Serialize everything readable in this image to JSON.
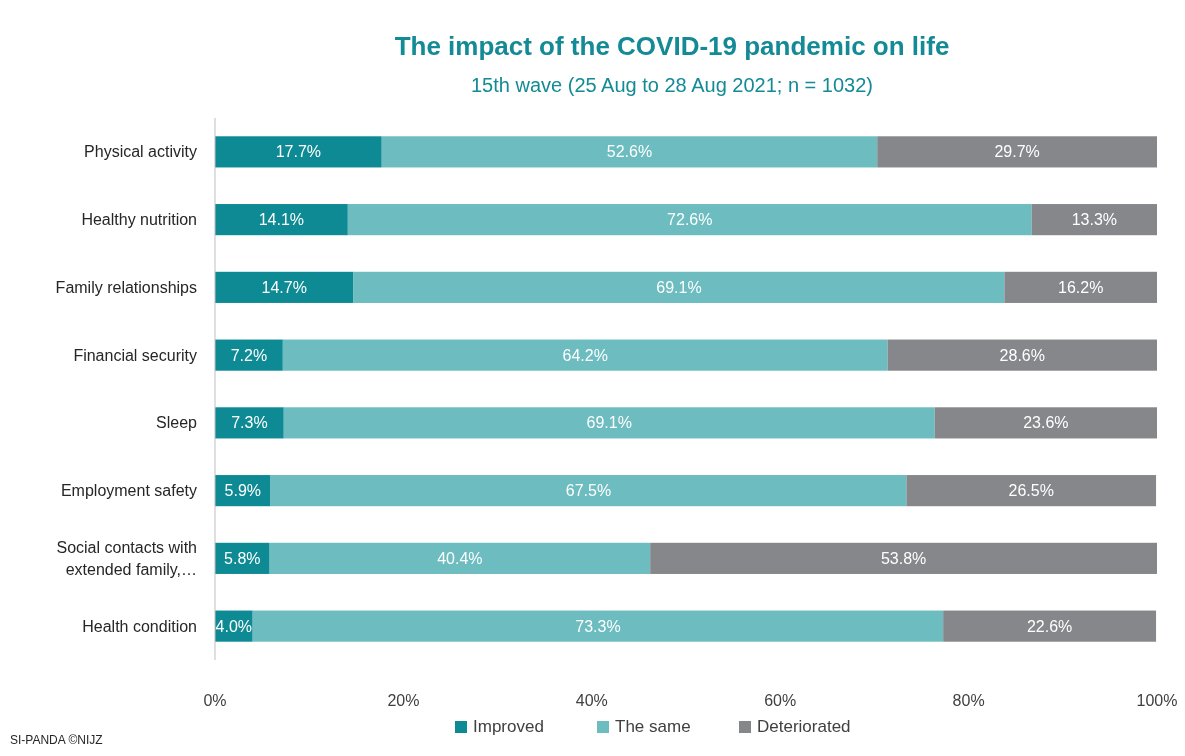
{
  "chart_data": {
    "type": "bar",
    "orientation": "horizontal",
    "stacked": true,
    "title": "The impact of the COVID-19 pandemic on life",
    "subtitle": "15th wave (25 Aug to 28 Aug 2021; n = 1032)",
    "categories": [
      "Physical activity",
      "Healthy nutrition",
      "Family relationships",
      "Financial security",
      "Sleep",
      "Employment safety",
      "Social contacts with extended family,…",
      "Health condition"
    ],
    "series": [
      {
        "name": "Improved",
        "color": "#0e8a94",
        "values": [
          17.7,
          14.1,
          14.7,
          7.2,
          7.3,
          5.9,
          5.8,
          4.0
        ],
        "value_labels": [
          "17.7%",
          "14.1%",
          "14.7%",
          "7.2%",
          "7.3%",
          "5.9%",
          "5.8%",
          "4.0%"
        ]
      },
      {
        "name": "The same",
        "color": "#6cbcc0",
        "values": [
          52.6,
          72.6,
          69.1,
          64.2,
          69.1,
          67.5,
          40.4,
          73.3
        ],
        "value_labels": [
          "52.6%",
          "72.6%",
          "69.1%",
          "64.2%",
          "69.1%",
          "67.5%",
          "40.4%",
          "73.3%"
        ]
      },
      {
        "name": "Deteriorated",
        "color": "#86878b",
        "values": [
          29.7,
          13.3,
          16.2,
          28.6,
          23.6,
          26.5,
          53.8,
          22.6
        ],
        "value_labels": [
          "29.7%",
          "13.3%",
          "16.2%",
          "28.6%",
          "23.6%",
          "26.5%",
          "53.8%",
          "22.6%"
        ]
      }
    ],
    "xlim": [
      0,
      100
    ],
    "xticks": [
      {
        "value": 0,
        "label": "0%"
      },
      {
        "value": 20,
        "label": "20%"
      },
      {
        "value": 40,
        "label": "40%"
      },
      {
        "value": 60,
        "label": "60%"
      },
      {
        "value": 80,
        "label": "80%"
      },
      {
        "value": 100,
        "label": "100%"
      }
    ],
    "grid": false,
    "legend": "bottom",
    "annotations": [
      "SI-PANDA ©NIJZ"
    ]
  }
}
